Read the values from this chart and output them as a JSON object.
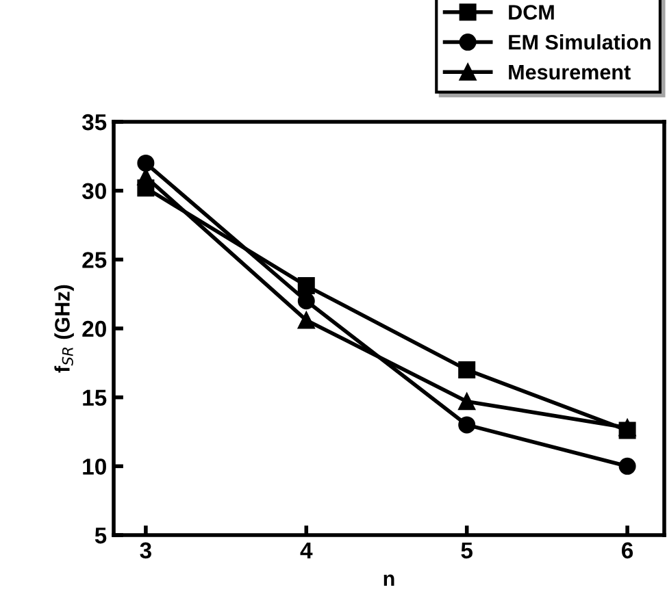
{
  "chart_data": {
    "type": "line",
    "xlabel": "n",
    "ylabel": "f$_{SR}$ (GHz)",
    "x": [
      3,
      4,
      5,
      6
    ],
    "series": [
      {
        "name": "DCM",
        "color": "#000000",
        "marker": "square",
        "values": [
          30.2,
          23.1,
          17.0,
          12.6
        ]
      },
      {
        "name": "EM Simulation",
        "color": "#000000",
        "marker": "circle",
        "values": [
          32.0,
          22.0,
          13.0,
          10.0
        ]
      },
      {
        "name": "Mesurement",
        "color": "#000000",
        "marker": "triangle",
        "values": [
          31.0,
          20.6,
          14.7,
          12.8
        ]
      }
    ],
    "xlim": [
      2.8,
      6.23
    ],
    "xticks": [
      3,
      4,
      5,
      6
    ],
    "ylim": [
      5,
      35
    ],
    "yticks": [
      5,
      10,
      15,
      20,
      25,
      30,
      35
    ],
    "grid": false,
    "legend": "top right",
    "line_style": "solid"
  }
}
